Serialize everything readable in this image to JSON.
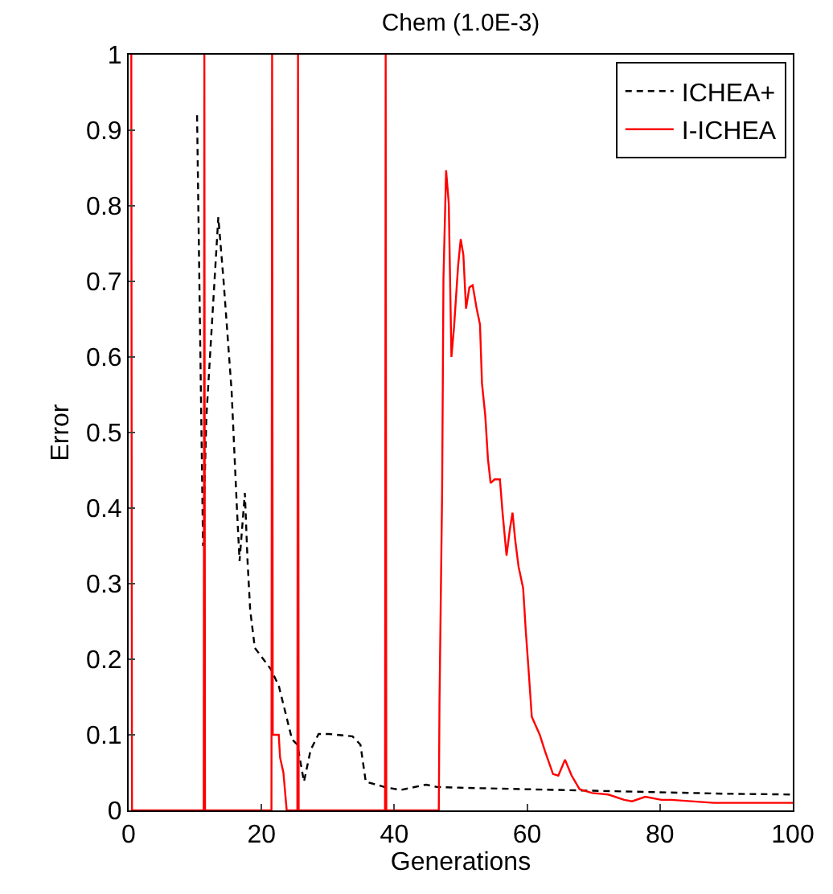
{
  "chart_data": {
    "type": "line",
    "title": "Chem (1.0E-3)",
    "xlabel": "Generations",
    "ylabel": "Error",
    "xlim": [
      0,
      100
    ],
    "xticks": [
      0,
      20,
      40,
      60,
      80,
      100
    ],
    "ylim": [
      0,
      1
    ],
    "yticks": [
      0,
      0.1,
      0.2,
      0.3,
      0.4,
      0.5,
      0.6,
      0.7,
      0.8,
      0.9,
      1
    ],
    "legend": "top right",
    "marker": "none",
    "series": [
      {
        "name": "ICHEA+",
        "color": "#000000",
        "line_style": "dashed",
        "x": [
          10.3,
          11.2,
          11.7,
          13.5,
          14.3,
          15.5,
          16.3,
          16.7,
          17.5,
          17.9,
          18.3,
          19.0,
          21.4,
          22.6,
          24.6,
          25.4,
          26.4,
          27.4,
          28.6,
          30.2,
          33.7,
          34.9,
          35.7,
          38.5,
          40.9,
          44.8,
          46.4,
          50,
          60,
          70,
          80,
          90,
          100
        ],
        "values": [
          0.92,
          0.35,
          0.52,
          0.785,
          0.7,
          0.555,
          0.4,
          0.33,
          0.42,
          0.33,
          0.265,
          0.215,
          0.187,
          0.165,
          0.094,
          0.087,
          0.038,
          0.08,
          0.101,
          0.101,
          0.098,
          0.087,
          0.038,
          0.031,
          0.027,
          0.034,
          0.031,
          0.03,
          0.028,
          0.026,
          0.024,
          0.022,
          0.021
        ]
      },
      {
        "name": "I-ICHEA",
        "color": "#ff0000",
        "line_style": "solid",
        "x": [
          0.4,
          0.5,
          11.3,
          11.4,
          11.5,
          21.5,
          21.6,
          21.7,
          22.6,
          22.8,
          23.3,
          23.8,
          25.4,
          25.5,
          25.6,
          38.6,
          38.7,
          38.8,
          46.7,
          46.8,
          47.2,
          47.4,
          47.8,
          48.2,
          48.6,
          49.0,
          49.6,
          50.0,
          50.4,
          50.8,
          51.3,
          51.8,
          52.4,
          52.9,
          53.2,
          53.7,
          54.1,
          54.5,
          55.1,
          55.9,
          56.3,
          56.9,
          57.4,
          57.8,
          58.2,
          58.7,
          59.4,
          59.8,
          60.2,
          60.7,
          61.9,
          62.7,
          63.9,
          64.7,
          65.7,
          66.7,
          67.9,
          69.8,
          72.2,
          74.6,
          75.8,
          77.8,
          80.2,
          81.7,
          88.1,
          100
        ],
        "values": [
          1,
          0,
          0,
          1,
          0,
          0,
          1,
          0.1,
          0.1,
          0.07,
          0.05,
          0,
          0,
          1,
          0,
          0,
          1,
          0,
          0,
          0.14,
          0.423,
          0.704,
          0.847,
          0.803,
          0.6,
          0.64,
          0.72,
          0.756,
          0.735,
          0.664,
          0.692,
          0.695,
          0.664,
          0.643,
          0.565,
          0.522,
          0.465,
          0.433,
          0.438,
          0.438,
          0.394,
          0.337,
          0.372,
          0.394,
          0.358,
          0.323,
          0.294,
          0.237,
          0.188,
          0.124,
          0.1,
          0.078,
          0.048,
          0.046,
          0.067,
          0.046,
          0.028,
          0.023,
          0.021,
          0.014,
          0.012,
          0.018,
          0.014,
          0.014,
          0.01,
          0.01
        ]
      }
    ]
  }
}
